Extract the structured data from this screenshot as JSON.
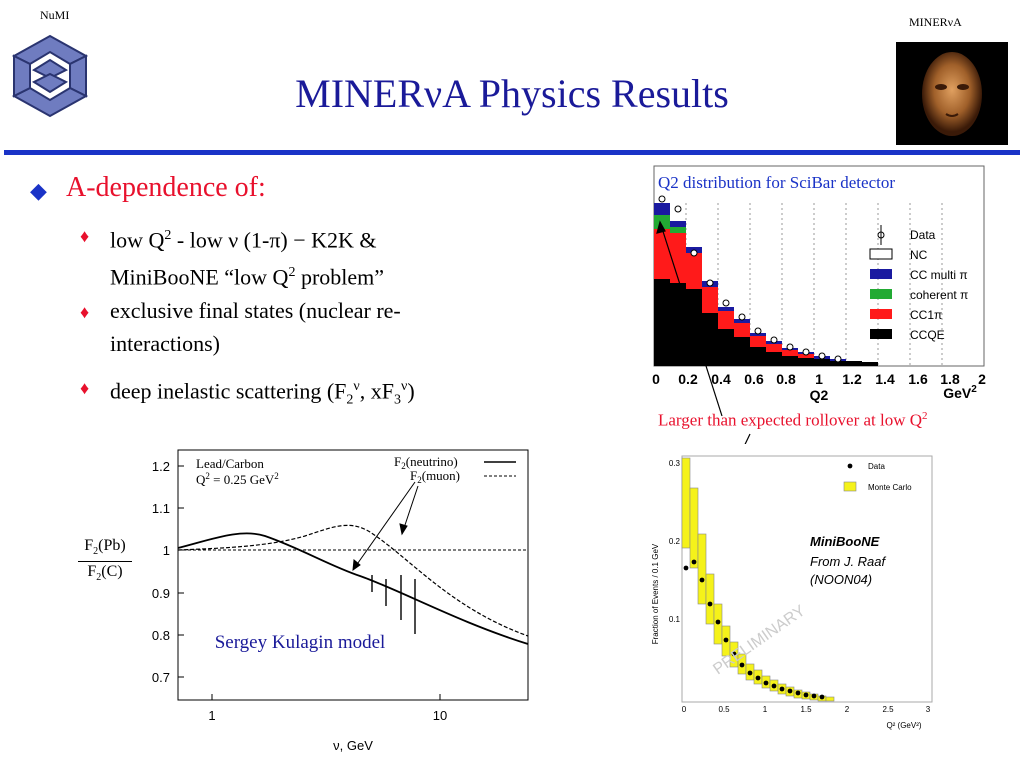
{
  "corner": {
    "left": "NuMI",
    "right_prefix": "MINER",
    "right_nu": "ν",
    "right_suffix": "A"
  },
  "title": {
    "prefix": "MINER",
    "nu": "ν",
    "suffix": "A Physics Results"
  },
  "bullets": {
    "main": "A-dependence of:",
    "sub": [
      {
        "line1": "low Q",
        "line1b": " - low ν (1-π) −  K2K &",
        "line2": "MiniBooNE “low Q",
        "line2b": " problem”"
      },
      {
        "line1": "exclusive final states (nuclear re-",
        "line2": "interactions)"
      },
      {
        "prefix": "deep inelastic scattering (F",
        "mid": ", xF",
        "suffix": ")"
      }
    ]
  },
  "kulagin": {
    "legend_line1": "Lead/Carbon",
    "legend_q2": "Q",
    "legend_q2val": " = 0.25 GeV",
    "curve1": "F",
    "curve1b": "(neutrino)",
    "curve2": "F",
    "curve2b": "(muon)",
    "ylabel_num": "F",
    "ylabel_num_sub": "2",
    "ylabel_num_tail": "(Pb)",
    "ylabel_den": "F",
    "ylabel_den_sub": "2",
    "ylabel_den_tail": "(C)",
    "xlabel": "ν, GeV",
    "credit": "Sergey Kulagin model",
    "yticks": [
      "1.2",
      "1.1",
      "1",
      "0.9",
      "0.8",
      "0.7"
    ],
    "xticks": [
      "1",
      "10"
    ]
  },
  "scibar": {
    "title": "Q2 distribution for SciBar detector",
    "legend": [
      "Data",
      "NC",
      "CC multi π",
      "coherent π",
      "CC1π",
      "CCQE"
    ],
    "xticks": [
      "0",
      "0.2",
      "0.4",
      "0.6",
      "0.8",
      "1",
      "1.2",
      "1.4",
      "1.6",
      "1.8",
      "2"
    ],
    "xlabel": "Q2",
    "xunit": "GeV",
    "annotation": "Larger than expected rollover at low Q"
  },
  "miniboone": {
    "legend": [
      "Data",
      "Monte Carlo"
    ],
    "ylabel": "Fraction of Events / 0.1 GeV",
    "label1": "MiniBooNE",
    "label2": "From J. Raaf",
    "label3": "(NOON04)",
    "watermark": "PRELIMINARY",
    "xticks": [
      "0",
      "0.5",
      "1",
      "1.5",
      "2",
      "2.5",
      "3"
    ],
    "yticks": [
      "0.3",
      "0.2",
      "0.1"
    ],
    "xlabel": "Q² (GeV²)"
  },
  "colors": {
    "title": "#1a1a99",
    "rule": "#1a33c7",
    "bullet": "#e8112d",
    "credit": "#1a1a99"
  }
}
